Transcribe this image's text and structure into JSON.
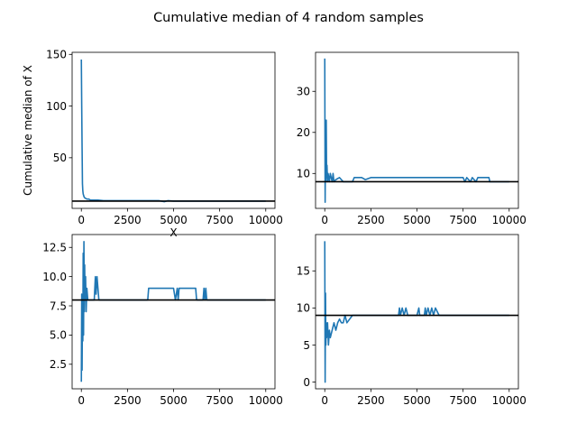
{
  "figure": {
    "title": "Cumulative median of 4 random samples"
  },
  "colors": {
    "series": "#1f77b4",
    "reference_line": "#000000"
  },
  "chart_data": [
    {
      "type": "line",
      "xlabel": "X",
      "ylabel": "Cumulative median of X",
      "xlim": [
        -500,
        10500
      ],
      "ylim": [
        1,
        152
      ],
      "xticks": [
        0,
        2500,
        5000,
        7500,
        10000
      ],
      "yticks": [
        50,
        100,
        150
      ],
      "reference_y": 8,
      "series": [
        {
          "values": [
            [
              0,
              145
            ],
            [
              20,
              100
            ],
            [
              40,
              60
            ],
            [
              60,
              25
            ],
            [
              80,
              18
            ],
            [
              100,
              15
            ],
            [
              150,
              12
            ],
            [
              200,
              11
            ],
            [
              300,
              10
            ],
            [
              400,
              10
            ],
            [
              500,
              9
            ],
            [
              700,
              9
            ],
            [
              900,
              9
            ],
            [
              1200,
              8.5
            ],
            [
              1600,
              8.5
            ],
            [
              2500,
              8.5
            ],
            [
              3500,
              8.5
            ],
            [
              4200,
              8.5
            ],
            [
              4500,
              7.5
            ],
            [
              4700,
              8.5
            ],
            [
              5000,
              8
            ],
            [
              6000,
              8
            ],
            [
              8000,
              8
            ],
            [
              10000,
              8
            ]
          ]
        }
      ]
    },
    {
      "type": "line",
      "xlim": [
        -500,
        10500
      ],
      "ylim": [
        1.5,
        39.5
      ],
      "xticks": [
        0,
        2500,
        5000,
        7500,
        10000
      ],
      "yticks": [
        10,
        20,
        30
      ],
      "reference_y": 8,
      "series": [
        {
          "values": [
            [
              0,
              38
            ],
            [
              20,
              3
            ],
            [
              40,
              20
            ],
            [
              60,
              8
            ],
            [
              80,
              23
            ],
            [
              100,
              9
            ],
            [
              120,
              12
            ],
            [
              150,
              8
            ],
            [
              180,
              10
            ],
            [
              250,
              8
            ],
            [
              300,
              10
            ],
            [
              400,
              8
            ],
            [
              450,
              10
            ],
            [
              500,
              8
            ],
            [
              600,
              8.5
            ],
            [
              800,
              9
            ],
            [
              1000,
              8
            ],
            [
              1500,
              8
            ],
            [
              1600,
              9
            ],
            [
              2000,
              9
            ],
            [
              2200,
              8.5
            ],
            [
              2500,
              9
            ],
            [
              4000,
              9
            ],
            [
              6000,
              9
            ],
            [
              7500,
              9
            ],
            [
              7600,
              8
            ],
            [
              7700,
              9
            ],
            [
              7900,
              8
            ],
            [
              8000,
              9
            ],
            [
              8200,
              8
            ],
            [
              8300,
              9
            ],
            [
              8900,
              9
            ],
            [
              8950,
              8
            ],
            [
              9000,
              8
            ],
            [
              10000,
              8
            ]
          ]
        }
      ]
    },
    {
      "type": "line",
      "xlim": [
        -500,
        10500
      ],
      "ylim": [
        0.4,
        13.6
      ],
      "xticks": [
        0,
        2500,
        5000,
        7500,
        10000
      ],
      "yticks": [
        2.5,
        5.0,
        7.5,
        10.0,
        12.5
      ],
      "ytick_labels": [
        "2.5",
        "5.0",
        "7.5",
        "10.0",
        "12.5"
      ],
      "reference_y": 8,
      "series": [
        {
          "values": [
            [
              0,
              1
            ],
            [
              20,
              8.5
            ],
            [
              40,
              2
            ],
            [
              60,
              8
            ],
            [
              80,
              4.5
            ],
            [
              100,
              12
            ],
            [
              120,
              5
            ],
            [
              140,
              13
            ],
            [
              160,
              7
            ],
            [
              180,
              11
            ],
            [
              200,
              8
            ],
            [
              230,
              10
            ],
            [
              260,
              7
            ],
            [
              300,
              9
            ],
            [
              350,
              8
            ],
            [
              400,
              8
            ],
            [
              500,
              8
            ],
            [
              700,
              8
            ],
            [
              760,
              10
            ],
            [
              800,
              8.5
            ],
            [
              850,
              10
            ],
            [
              900,
              9
            ],
            [
              950,
              8
            ],
            [
              1000,
              8
            ],
            [
              3000,
              8
            ],
            [
              3600,
              8
            ],
            [
              3650,
              9
            ],
            [
              5000,
              9
            ],
            [
              5100,
              8
            ],
            [
              5200,
              9
            ],
            [
              5250,
              8
            ],
            [
              5300,
              9
            ],
            [
              6200,
              9
            ],
            [
              6250,
              8
            ],
            [
              6600,
              8
            ],
            [
              6650,
              9
            ],
            [
              6700,
              8
            ],
            [
              6750,
              9
            ],
            [
              6800,
              8
            ],
            [
              10000,
              8
            ]
          ]
        }
      ]
    },
    {
      "type": "line",
      "xlim": [
        -500,
        10500
      ],
      "ylim": [
        -0.9,
        19.9
      ],
      "xticks": [
        0,
        2500,
        5000,
        7500,
        10000
      ],
      "yticks": [
        0,
        5,
        10,
        15
      ],
      "reference_y": 9,
      "series": [
        {
          "values": [
            [
              0,
              19
            ],
            [
              20,
              0
            ],
            [
              40,
              12
            ],
            [
              60,
              5
            ],
            [
              80,
              8
            ],
            [
              100,
              6
            ],
            [
              150,
              8
            ],
            [
              200,
              5
            ],
            [
              250,
              7
            ],
            [
              300,
              6
            ],
            [
              400,
              7
            ],
            [
              500,
              8
            ],
            [
              600,
              7
            ],
            [
              700,
              8
            ],
            [
              800,
              8.5
            ],
            [
              900,
              8
            ],
            [
              1000,
              8
            ],
            [
              1100,
              9
            ],
            [
              1200,
              8
            ],
            [
              1500,
              9
            ],
            [
              2000,
              9
            ],
            [
              3000,
              9
            ],
            [
              4000,
              9
            ],
            [
              4050,
              10
            ],
            [
              4100,
              9
            ],
            [
              4200,
              10
            ],
            [
              4300,
              9
            ],
            [
              4400,
              10
            ],
            [
              4500,
              9
            ],
            [
              5000,
              9
            ],
            [
              5100,
              10
            ],
            [
              5150,
              9
            ],
            [
              5400,
              9
            ],
            [
              5450,
              10
            ],
            [
              5500,
              9
            ],
            [
              5600,
              10
            ],
            [
              5700,
              9
            ],
            [
              5800,
              10
            ],
            [
              5900,
              9
            ],
            [
              6000,
              10
            ],
            [
              6100,
              9.5
            ],
            [
              6200,
              9
            ],
            [
              10000,
              9
            ]
          ]
        }
      ]
    }
  ]
}
